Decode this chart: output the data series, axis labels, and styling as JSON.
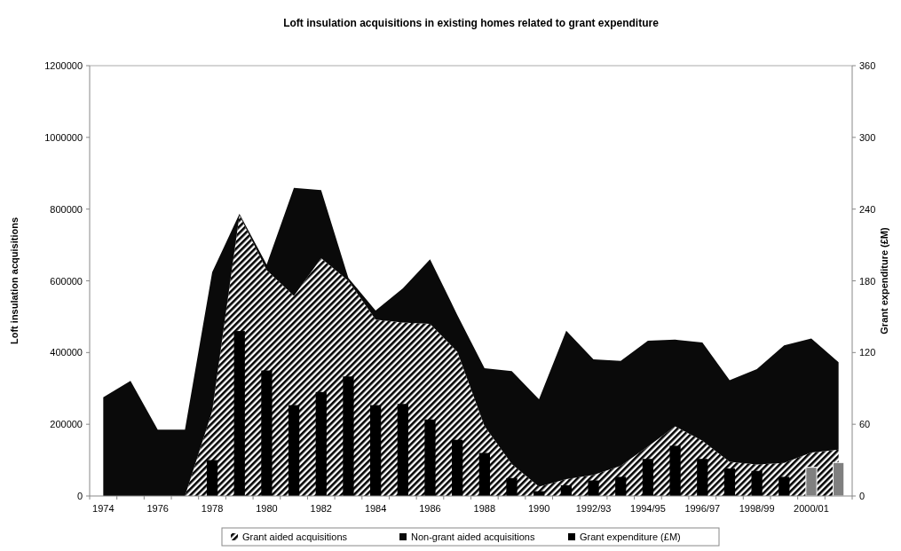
{
  "chart_data": {
    "type": "area",
    "stacked": true,
    "title": "Loft insulation acquisitions in existing homes related to grant expenditure",
    "ylabel": "Loft insulation acquisitions",
    "y2label": "Grant expenditure (£M)",
    "categories": [
      "1974",
      null,
      "1976",
      null,
      "1978",
      null,
      "1980",
      null,
      "1982",
      null,
      "1984",
      null,
      "1986",
      null,
      "1988",
      null,
      "1990",
      null,
      "1992/93",
      null,
      "1994/95",
      null,
      "1996/97",
      null,
      "1998/99",
      null,
      "2000/01",
      null
    ],
    "ylim": [
      0,
      1200000
    ],
    "yticks": [
      0,
      200000,
      400000,
      600000,
      800000,
      1000000,
      1200000
    ],
    "y2lim": [
      0,
      360
    ],
    "y2ticks": [
      0,
      60,
      120,
      180,
      240,
      300,
      360
    ],
    "legend": "bottom",
    "grid": false,
    "series": [
      {
        "name": "Grant aided acquisitions",
        "color": "#000000",
        "values": [
          0,
          0,
          0,
          0,
          237000,
          783000,
          630000,
          558000,
          663000,
          600000,
          492000,
          484000,
          480000,
          402000,
          195000,
          89000,
          26000,
          47000,
          59000,
          84000,
          138000,
          194000,
          154000,
          95000,
          88000,
          92000,
          121000,
          129000
        ]
      },
      {
        "name": "Non-grant aided acquisitions",
        "color": "#0a0a0a",
        "values": [
          275000,
          321000,
          185000,
          185000,
          387000,
          4000,
          15000,
          301000,
          190000,
          8000,
          25000,
          95000,
          180000,
          103000,
          161000,
          259000,
          244000,
          414000,
          322000,
          293000,
          295000,
          242000,
          274000,
          228000,
          266000,
          328000,
          318000,
          244000
        ]
      },
      {
        "name": "Grant expenditure (£M)",
        "type": "bar",
        "axis": "y2",
        "color": "#000000",
        "colors": [
          "#000000",
          "#000000",
          "#000000",
          "#000000",
          "#000000",
          "#000000",
          "#000000",
          "#000000",
          "#000000",
          "#000000",
          "#000000",
          "#000000",
          "#000000",
          "#000000",
          "#000000",
          "#000000",
          "#000000",
          "#000000",
          "#000000",
          "#000000",
          "#000000",
          "#000000",
          "#000000",
          "#000000",
          "#000000",
          "#000000",
          "#808080",
          "#808080"
        ],
        "values": [
          0,
          0,
          0,
          0,
          30,
          138,
          105,
          76,
          87,
          100,
          76,
          77,
          64,
          47,
          36,
          15,
          4,
          9,
          13,
          16,
          31,
          42,
          31,
          23,
          21,
          16,
          24,
          28
        ]
      }
    ]
  }
}
